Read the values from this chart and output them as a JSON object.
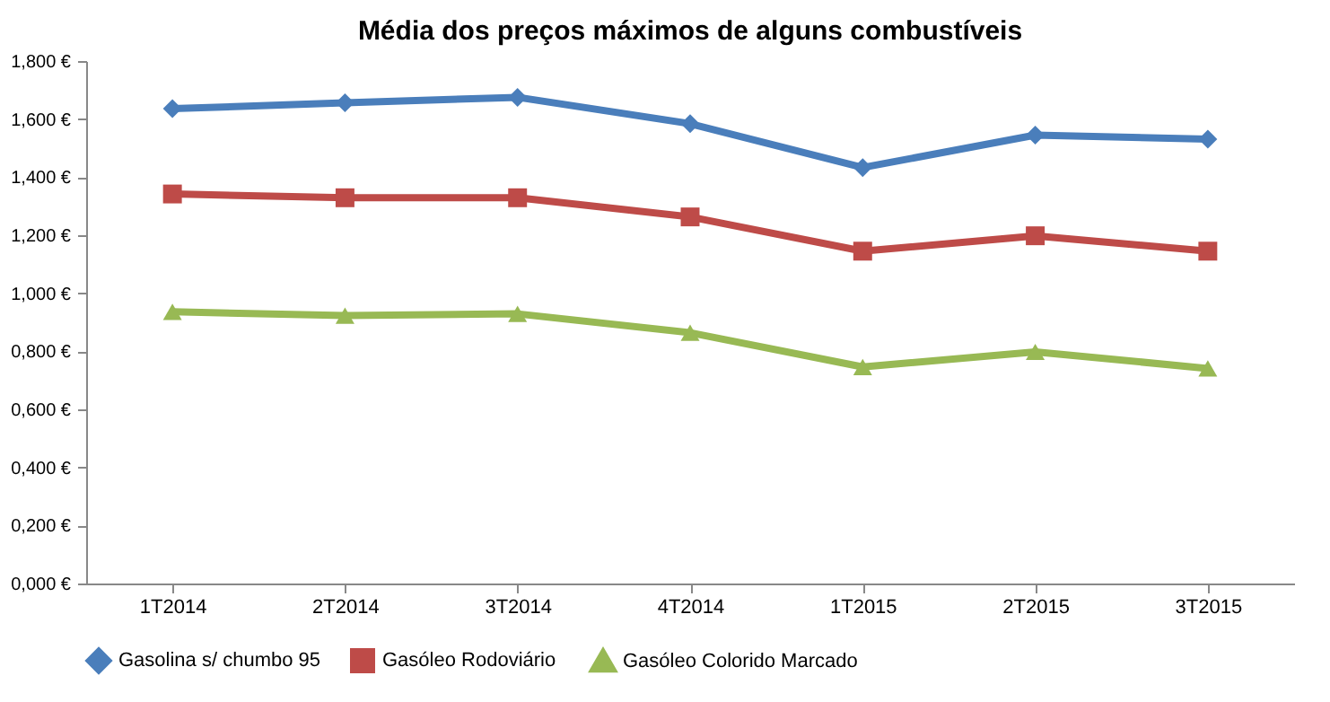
{
  "chart_data": {
    "type": "line",
    "title": "Média dos preços máximos de alguns combustíveis",
    "categories": [
      "1T2014",
      "2T2014",
      "3T2014",
      "4T2014",
      "1T2015",
      "2T2015",
      "3T2015"
    ],
    "series": [
      {
        "name": "Gasolina s/ chumbo 95",
        "color": "#4a7ebb",
        "marker": "diamond",
        "values": [
          1.636,
          1.656,
          1.675,
          1.584,
          1.433,
          1.545,
          1.531
        ]
      },
      {
        "name": "Gasóleo  Rodoviário",
        "color": "#be4b48",
        "marker": "square",
        "values": [
          1.342,
          1.329,
          1.329,
          1.263,
          1.145,
          1.198,
          1.145
        ]
      },
      {
        "name": "Gasóleo Colorido Marcado",
        "color": "#98b954",
        "marker": "triangle",
        "values": [
          0.936,
          0.923,
          0.929,
          0.864,
          0.746,
          0.798,
          0.741
        ]
      }
    ],
    "ylim": [
      0,
      1.8
    ],
    "yticks": [
      {
        "value": 0,
        "label": "0,000 €"
      },
      {
        "value": 0.2,
        "label": "0,200 €"
      },
      {
        "value": 0.4,
        "label": "0,400 €"
      },
      {
        "value": 0.6,
        "label": "0,600 €"
      },
      {
        "value": 0.8,
        "label": "0,800 €"
      },
      {
        "value": 1.0,
        "label": "1,000 €"
      },
      {
        "value": 1.2,
        "label": "1,200 €"
      },
      {
        "value": 1.4,
        "label": "1,400 €"
      },
      {
        "value": 1.6,
        "label": "1,600 €"
      },
      {
        "value": 1.8,
        "label": "1,800 €"
      }
    ],
    "grid": false,
    "legend": "bottom",
    "line_style": "solid"
  }
}
